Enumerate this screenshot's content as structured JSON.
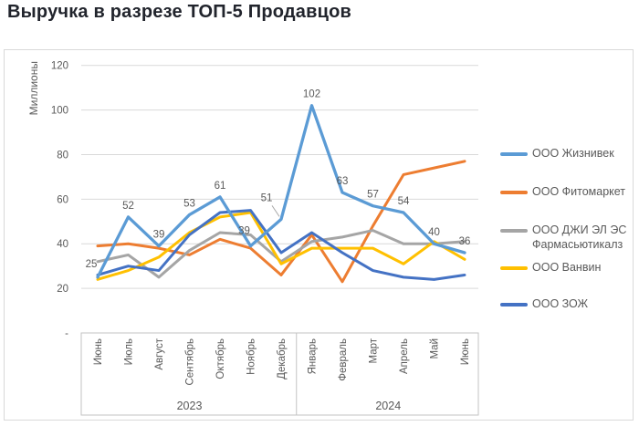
{
  "title": "Выручка в разрезе ТОП-5 Продавцов",
  "colors": {
    "grid": "#d9d9d9",
    "axis_line": "#c3c3c3",
    "axis_text": "#595959",
    "data_label": "#595959",
    "leader_line": "#a6a6a6",
    "card_border": "#d9d9d9",
    "title_text": "#21242c"
  },
  "chart_data": {
    "type": "line",
    "title": "Выручка в разрезе ТОП-5 Продавцов",
    "y_axis_title": "Миллионы",
    "ylim": [
      0,
      120
    ],
    "y_tick_step": 20,
    "y_zero_label": "-",
    "grid": true,
    "legend_position": "right",
    "categories": [
      "Июнь",
      "Июль",
      "Август",
      "Сентябрь",
      "Октябрь",
      "Ноябрь",
      "Декабрь",
      "Январь",
      "Февраль",
      "Март",
      "Апрель",
      "Май",
      "Июнь"
    ],
    "year_groups": [
      {
        "label": "2023",
        "from": 0,
        "to": 6
      },
      {
        "label": "2024",
        "from": 7,
        "to": 12
      }
    ],
    "series": [
      {
        "name": "ООО Жизнивек",
        "color": "#5B9BD5",
        "data_labels": true,
        "values": [
          25,
          52,
          39,
          53,
          61,
          39,
          51,
          102,
          63,
          57,
          54,
          40,
          36
        ]
      },
      {
        "name": "ООО Фитомаркет",
        "color": "#ED7D31",
        "data_labels": false,
        "values": [
          39,
          40,
          38,
          35,
          42,
          38,
          26,
          44,
          23,
          48,
          71,
          74,
          77
        ]
      },
      {
        "name": "ООО ДЖИ ЭЛ ЭС Фармасьютикалз",
        "color": "#A5A5A5",
        "data_labels": false,
        "values": [
          32,
          35,
          25,
          37,
          45,
          44,
          32,
          41,
          43,
          46,
          40,
          40,
          41
        ]
      },
      {
        "name": "ООО Ванвин",
        "color": "#FFC000",
        "data_labels": false,
        "values": [
          24,
          28,
          34,
          45,
          52,
          54,
          31,
          38,
          38,
          38,
          31,
          41,
          33
        ]
      },
      {
        "name": "ООО ЗОЖ",
        "color": "#4472C4",
        "data_labels": false,
        "values": [
          26,
          30,
          28,
          44,
          54,
          55,
          36,
          45,
          36,
          28,
          25,
          24,
          26
        ]
      }
    ]
  }
}
